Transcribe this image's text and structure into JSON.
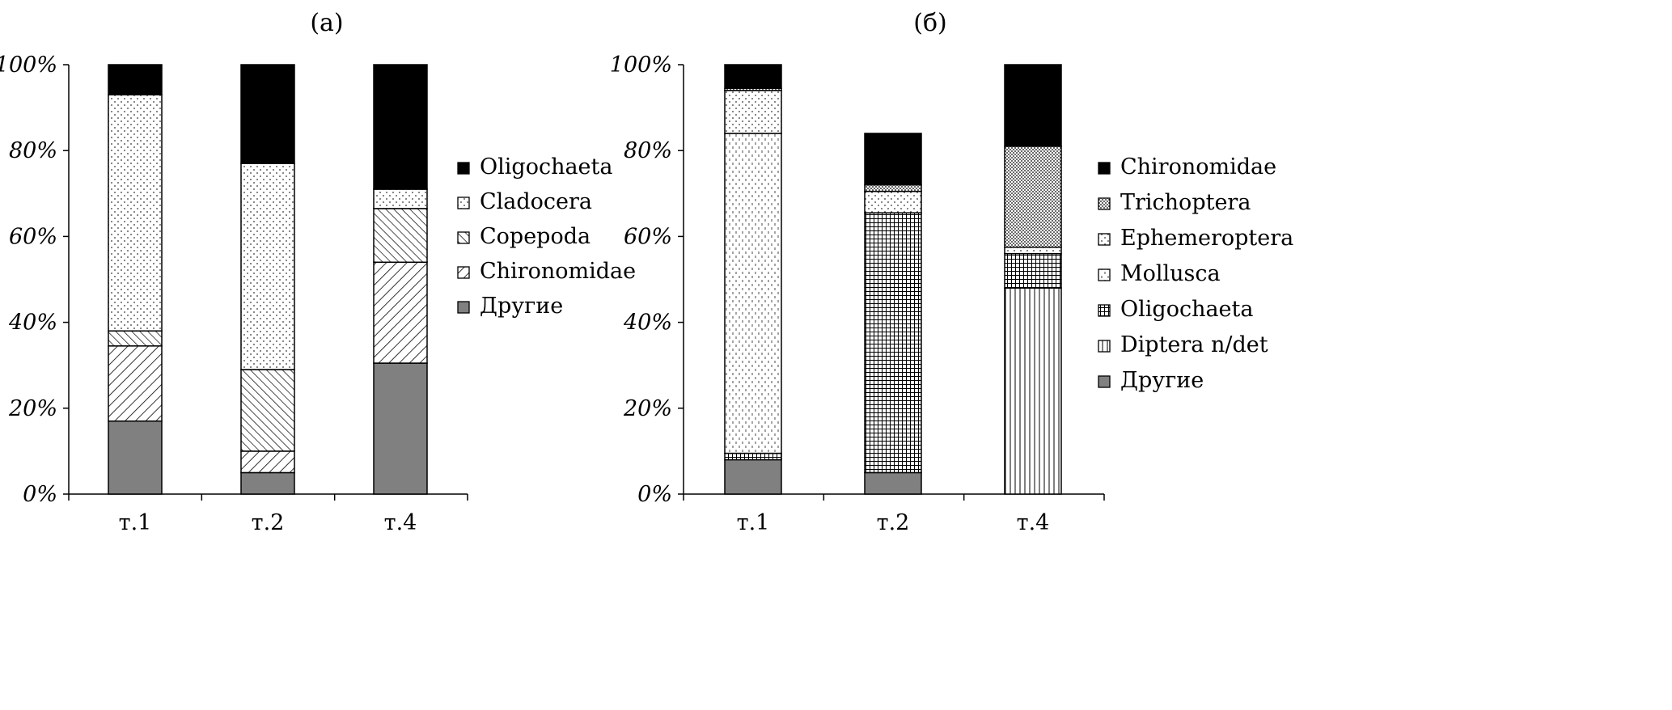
{
  "chart_data": [
    {
      "type": "bar",
      "stacked": true,
      "title": "(а)",
      "categories": [
        "т.1",
        "т.2",
        "т.4"
      ],
      "y_ticks": [
        "0%",
        "20%",
        "40%",
        "60%",
        "80%",
        "100%"
      ],
      "ylim": [
        0,
        100
      ],
      "legend_position": "right",
      "series": [
        {
          "name": "Другие",
          "pattern": "solid-gray",
          "values": [
            17,
            5,
            30.5
          ]
        },
        {
          "name": "Chironomidae",
          "pattern": "diag-up",
          "values": [
            17.5,
            5,
            23.5
          ]
        },
        {
          "name": "Copepoda",
          "pattern": "diag-down",
          "values": [
            3.5,
            19,
            12.5
          ]
        },
        {
          "name": "Cladocera",
          "pattern": "dots",
          "values": [
            55,
            48,
            4.5
          ]
        },
        {
          "name": "Oligochaeta",
          "pattern": "solid-black",
          "values": [
            7,
            23,
            29
          ]
        }
      ],
      "legend_order": [
        "Oligochaeta",
        "Cladocera",
        "Copepoda",
        "Chironomidae",
        "Другие"
      ]
    },
    {
      "type": "bar",
      "stacked": true,
      "title": "(б)",
      "categories": [
        "т.1",
        "т.2",
        "т.4"
      ],
      "y_ticks": [
        "0%",
        "20%",
        "40%",
        "60%",
        "80%",
        "100%"
      ],
      "ylim": [
        0,
        100
      ],
      "legend_position": "right",
      "series": [
        {
          "name": "Другие",
          "pattern": "solid-gray",
          "values": [
            8,
            5,
            0
          ]
        },
        {
          "name": "Diptera n/det",
          "pattern": "vlines",
          "values": [
            0,
            0,
            48
          ]
        },
        {
          "name": "Oligochaeta",
          "pattern": "grid",
          "values": [
            1.5,
            60.5,
            8
          ]
        },
        {
          "name": "Mollusca",
          "pattern": "dash-dots",
          "values": [
            74.5,
            0,
            0
          ]
        },
        {
          "name": "Ephemeroptera",
          "pattern": "dots",
          "values": [
            10,
            5,
            1.5
          ]
        },
        {
          "name": "Trichoptera",
          "pattern": "dense-dots",
          "values": [
            0.5,
            1.5,
            23.5
          ]
        },
        {
          "name": "Chironomidae",
          "pattern": "solid-black",
          "values": [
            5.5,
            12,
            19
          ]
        }
      ],
      "legend_order": [
        "Chironomidae",
        "Trichoptera",
        "Ephemeroptera",
        "Mollusca",
        "Oligochaeta",
        "Diptera n/det",
        "Другие"
      ]
    }
  ]
}
